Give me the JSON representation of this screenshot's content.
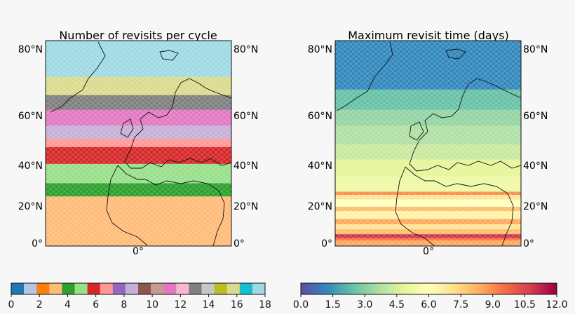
{
  "chart_data": [
    {
      "type": "heatmap",
      "title": "Number of revisits per cycle",
      "projection": "map (Europe / North Africa)",
      "y_tick_labels": [
        "0°",
        "20°N",
        "40°N",
        "60°N",
        "80°N"
      ],
      "y_ticks_deg": [
        0,
        20,
        40,
        60,
        80
      ],
      "ylim_deg": [
        0,
        84
      ],
      "x_tick_labels": [
        "0°"
      ],
      "colorbar": {
        "kind": "discrete",
        "range": [
          0,
          18
        ],
        "tick_labels": [
          "0",
          "2",
          "4",
          "6",
          "8",
          "10",
          "12",
          "14",
          "16",
          "18"
        ],
        "colors": [
          "#1f77b4",
          "#aec7e8",
          "#ff7f0e",
          "#ffbb78",
          "#2ca02c",
          "#98df8a",
          "#d62728",
          "#ff9896",
          "#9467bd",
          "#c5b0d5",
          "#8c564b",
          "#c49c94",
          "#e377c2",
          "#f7b6d2",
          "#7f7f7f",
          "#c7c7c7",
          "#bcbd22",
          "#dbdb8d",
          "#17becf",
          "#9edae5"
        ]
      },
      "bands": [
        {
          "lat": [
            0,
            8
          ],
          "value": 3
        },
        {
          "lat": [
            8,
            20
          ],
          "value": 3.5
        },
        {
          "lat": [
            20,
            38
          ],
          "value": 3.5
        },
        {
          "lat": [
            38,
            46
          ],
          "value": 4
        },
        {
          "lat": [
            46,
            56
          ],
          "value": 4.5
        },
        {
          "lat": [
            56,
            63
          ],
          "value": 5.5
        },
        {
          "lat": [
            63,
            66
          ],
          "value": 6.5
        },
        {
          "lat": [
            66,
            70
          ],
          "value": 8.5
        },
        {
          "lat": [
            70,
            74
          ],
          "value": 11
        },
        {
          "lat": [
            74,
            77
          ],
          "value": 13
        },
        {
          "lat": [
            77,
            80
          ],
          "value": 16
        },
        {
          "lat": [
            80,
            84
          ],
          "value": 18
        }
      ]
    },
    {
      "type": "heatmap",
      "title": "Maximum revisit time (days)",
      "projection": "map (Europe / North Africa)",
      "y_tick_labels": [
        "0°",
        "20°N",
        "40°N",
        "60°N",
        "80°N"
      ],
      "y_ticks_deg": [
        0,
        20,
        40,
        60,
        80
      ],
      "ylim_deg": [
        0,
        84
      ],
      "x_tick_labels": [
        "0°"
      ],
      "colorbar": {
        "kind": "continuous",
        "colormap": "Spectral_r",
        "range": [
          0,
          12
        ],
        "tick_labels": [
          "0.0",
          "1.5",
          "3.0",
          "4.5",
          "6.0",
          "7.5",
          "9.0",
          "10.5",
          "12.0"
        ]
      },
      "bands": [
        {
          "lat": [
            0,
            5
          ],
          "value": 8.5
        },
        {
          "lat": [
            5,
            7
          ],
          "value": 9.5
        },
        {
          "lat": [
            7,
            10
          ],
          "value": 11
        },
        {
          "lat": [
            10,
            14
          ],
          "value": 8
        },
        {
          "lat": [
            14,
            18
          ],
          "value": 7
        },
        {
          "lat": [
            18,
            22
          ],
          "value": 8.5
        },
        {
          "lat": [
            22,
            28
          ],
          "value": 6.5
        },
        {
          "lat": [
            28,
            31
          ],
          "value": 8
        },
        {
          "lat": [
            31,
            36
          ],
          "value": 6
        },
        {
          "lat": [
            36,
            39
          ],
          "value": 7
        },
        {
          "lat": [
            39,
            41
          ],
          "value": 9
        },
        {
          "lat": [
            41,
            50
          ],
          "value": 5.2
        },
        {
          "lat": [
            50,
            58
          ],
          "value": 4.8
        },
        {
          "lat": [
            58,
            64
          ],
          "value": 4.2
        },
        {
          "lat": [
            64,
            70
          ],
          "value": 3.7
        },
        {
          "lat": [
            70,
            74
          ],
          "value": 3.2
        },
        {
          "lat": [
            74,
            78
          ],
          "value": 2.4
        },
        {
          "lat": [
            78,
            84
          ],
          "value": 1.2
        }
      ]
    }
  ]
}
